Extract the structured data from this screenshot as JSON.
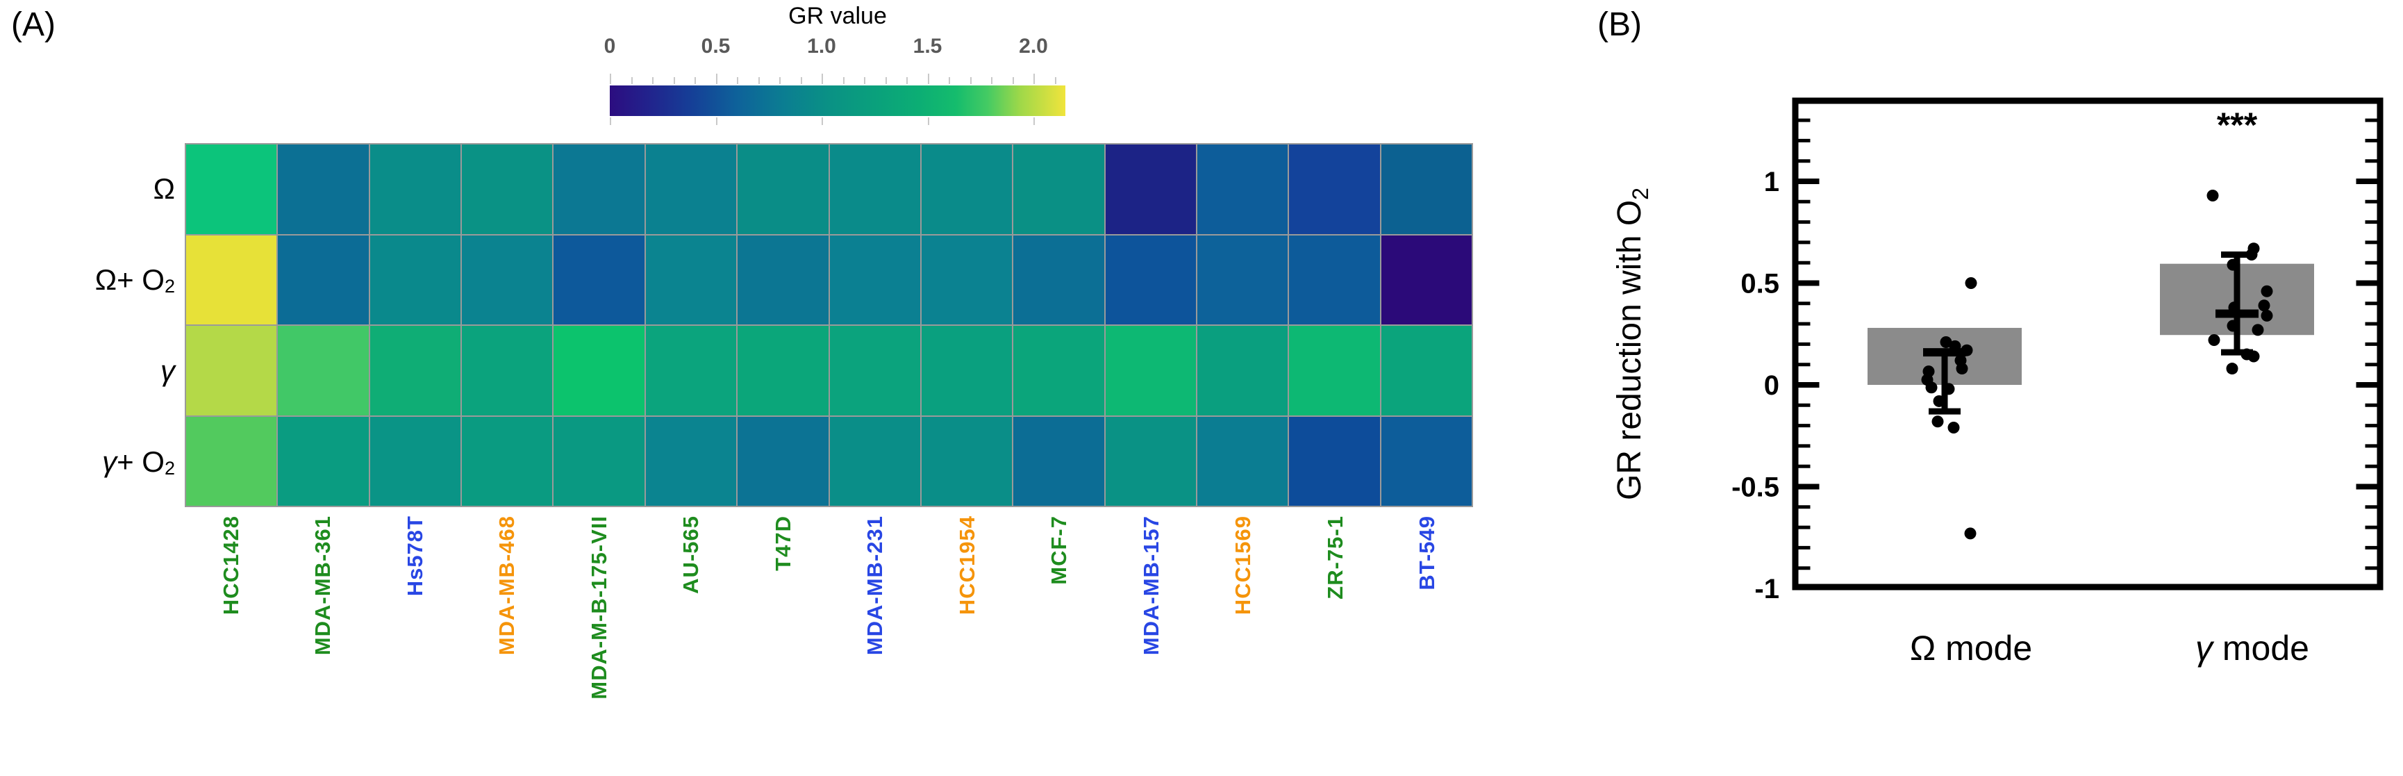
{
  "chart_data": [
    {
      "type": "heatmap",
      "panel_label": "(A)",
      "colorbar": {
        "title": "GR value",
        "tick_labels": [
          "0",
          "0.5",
          "1.0",
          "1.5",
          "2.0"
        ],
        "tick_values": [
          0,
          0.5,
          1.0,
          1.5,
          2.0
        ],
        "range": [
          0,
          2.15
        ],
        "minor_step": 0.1,
        "gradient_stops": [
          [
            0.0,
            "#2c0d80"
          ],
          [
            0.08,
            "#22218c"
          ],
          [
            0.18,
            "#153f97"
          ],
          [
            0.28,
            "#0e629a"
          ],
          [
            0.38,
            "#0b7d92"
          ],
          [
            0.48,
            "#0a9185"
          ],
          [
            0.58,
            "#0aa07c"
          ],
          [
            0.68,
            "#0cae74"
          ],
          [
            0.76,
            "#15bc6d"
          ],
          [
            0.83,
            "#45cb63"
          ],
          [
            0.9,
            "#9ed849"
          ],
          [
            1.0,
            "#f0e43c"
          ]
        ]
      },
      "row_labels": [
        {
          "sym": "Ω",
          "rest": "",
          "sub": "",
          "italic": false
        },
        {
          "sym": "Ω",
          "rest": " + O",
          "sub": "2",
          "italic": false
        },
        {
          "sym": "γ",
          "rest": "",
          "sub": "",
          "italic": true
        },
        {
          "sym": "γ",
          "rest": " + O",
          "sub": "2",
          "italic": true
        }
      ],
      "label_palette": {
        "green": "#1e8c1e",
        "blue": "#2846e4",
        "orange": "#f5940a"
      },
      "columns": [
        {
          "label": "HCC1428",
          "color": "#1e8c1e"
        },
        {
          "label": "MDA-MB-361",
          "color": "#1e8c1e"
        },
        {
          "label": "Hs578T",
          "color": "#2846e4"
        },
        {
          "label": "MDA-MB-468",
          "color": "#f5940a"
        },
        {
          "label": "MDA-M-B-175-VII",
          "color": "#1e8c1e"
        },
        {
          "label": "AU-565",
          "color": "#1e8c1e"
        },
        {
          "label": "T47D",
          "color": "#1e8c1e"
        },
        {
          "label": "MDA-MB-231",
          "color": "#2846e4"
        },
        {
          "label": "HCC1954",
          "color": "#f5940a"
        },
        {
          "label": "MCF-7",
          "color": "#1e8c1e"
        },
        {
          "label": "MDA-MB-157",
          "color": "#2846e4"
        },
        {
          "label": "HCC1569",
          "color": "#f5940a"
        },
        {
          "label": "ZR-75-1",
          "color": "#1e8c1e"
        },
        {
          "label": "BT-549",
          "color": "#2846e4"
        }
      ],
      "values": [
        [
          1.55,
          0.68,
          0.95,
          1.02,
          0.74,
          0.83,
          0.95,
          0.93,
          0.93,
          0.98,
          0.13,
          0.52,
          0.35,
          0.62
        ],
        [
          2.02,
          0.65,
          0.91,
          0.85,
          0.49,
          0.86,
          0.72,
          0.82,
          0.84,
          0.66,
          0.45,
          0.55,
          0.5,
          0.02
        ],
        [
          1.88,
          1.62,
          1.28,
          1.18,
          1.55,
          1.19,
          1.22,
          1.18,
          1.14,
          1.2,
          1.38,
          1.13,
          1.38,
          1.19
        ],
        [
          1.62,
          1.1,
          1.04,
          1.09,
          1.07,
          0.86,
          0.7,
          0.96,
          0.96,
          0.64,
          1.0,
          0.78,
          0.4,
          0.52
        ]
      ],
      "cell_colors": [
        [
          "#0cc47b",
          "#0c7094",
          "#0a8d89",
          "#0a9285",
          "#0c7893",
          "#0b8190",
          "#0a8d87",
          "#0a8b8a",
          "#0a8b8a",
          "#0a9085",
          "#1c2386",
          "#0d5d9a",
          "#13439b",
          "#0c6191"
        ],
        [
          "#e7e138",
          "#0c6c96",
          "#0a898c",
          "#0b8390",
          "#0d599b",
          "#0b8490",
          "#0c7693",
          "#0b8092",
          "#0b8291",
          "#0c6f95",
          "#0d549b",
          "#0d629a",
          "#0d5b9a",
          "#2b0a79"
        ],
        [
          "#b4d948",
          "#41c867",
          "#0fad75",
          "#0ba37d",
          "#0cc36d",
          "#0ba47d",
          "#0ba67a",
          "#0ba37d",
          "#0aa07f",
          "#0ba57b",
          "#0db873",
          "#0a9f7f",
          "#0db873",
          "#0ba47c"
        ],
        [
          "#52ca5e",
          "#0a9c81",
          "#0a9486",
          "#0a9b81",
          "#0a9982",
          "#0b8490",
          "#0c7394",
          "#0a8e88",
          "#0a8e88",
          "#0c6d95",
          "#0a9285",
          "#0b7d92",
          "#0d4c9a",
          "#0d5d9a"
        ]
      ]
    },
    {
      "type": "scatter",
      "panel_label": "(B)",
      "ylabel_main": "GR reduction with O",
      "ylabel_sub": "2",
      "ylim": [
        -1.0,
        1.4
      ],
      "ytick_values": [
        -1,
        -0.5,
        0,
        0.5,
        1
      ],
      "ytick_labels": [
        "-1",
        "-0.5",
        "0",
        "0.5",
        "1"
      ],
      "minor_step": 0.1,
      "bar_color": "#8b8b8b",
      "point_color": "#000000",
      "groups": [
        {
          "symbol": "Ω",
          "word": " mode",
          "italic": false,
          "significance": "",
          "bar": [
            0.0,
            0.28
          ],
          "mean": 0.16,
          "whisker": [
            -0.13,
            0.16
          ],
          "points": [
            [
              0.5,
              38
            ],
            [
              0.21,
              2
            ],
            [
              0.19,
              15
            ],
            [
              0.17,
              32
            ],
            [
              0.12,
              23
            ],
            [
              0.08,
              25
            ],
            [
              0.066,
              -23
            ],
            [
              0.025,
              -25
            ],
            [
              -0.013,
              -19
            ],
            [
              -0.02,
              6
            ],
            [
              -0.08,
              -8
            ],
            [
              -0.18,
              -10
            ],
            [
              -0.21,
              13
            ],
            [
              -0.73,
              37
            ]
          ]
        },
        {
          "symbol": "γ",
          "word": " mode",
          "italic": true,
          "significance": "***",
          "bar": [
            0.245,
            0.595
          ],
          "mean": 0.35,
          "whisker": [
            0.16,
            0.64
          ],
          "points": [
            [
              0.93,
              -35
            ],
            [
              0.67,
              24
            ],
            [
              0.64,
              21
            ],
            [
              0.59,
              -6
            ],
            [
              0.46,
              43
            ],
            [
              0.39,
              39
            ],
            [
              0.38,
              -4
            ],
            [
              0.34,
              43
            ],
            [
              0.29,
              -6
            ],
            [
              0.27,
              30
            ],
            [
              0.22,
              -33
            ],
            [
              0.15,
              14
            ],
            [
              0.14,
              24
            ],
            [
              0.08,
              -7
            ]
          ]
        }
      ]
    }
  ]
}
